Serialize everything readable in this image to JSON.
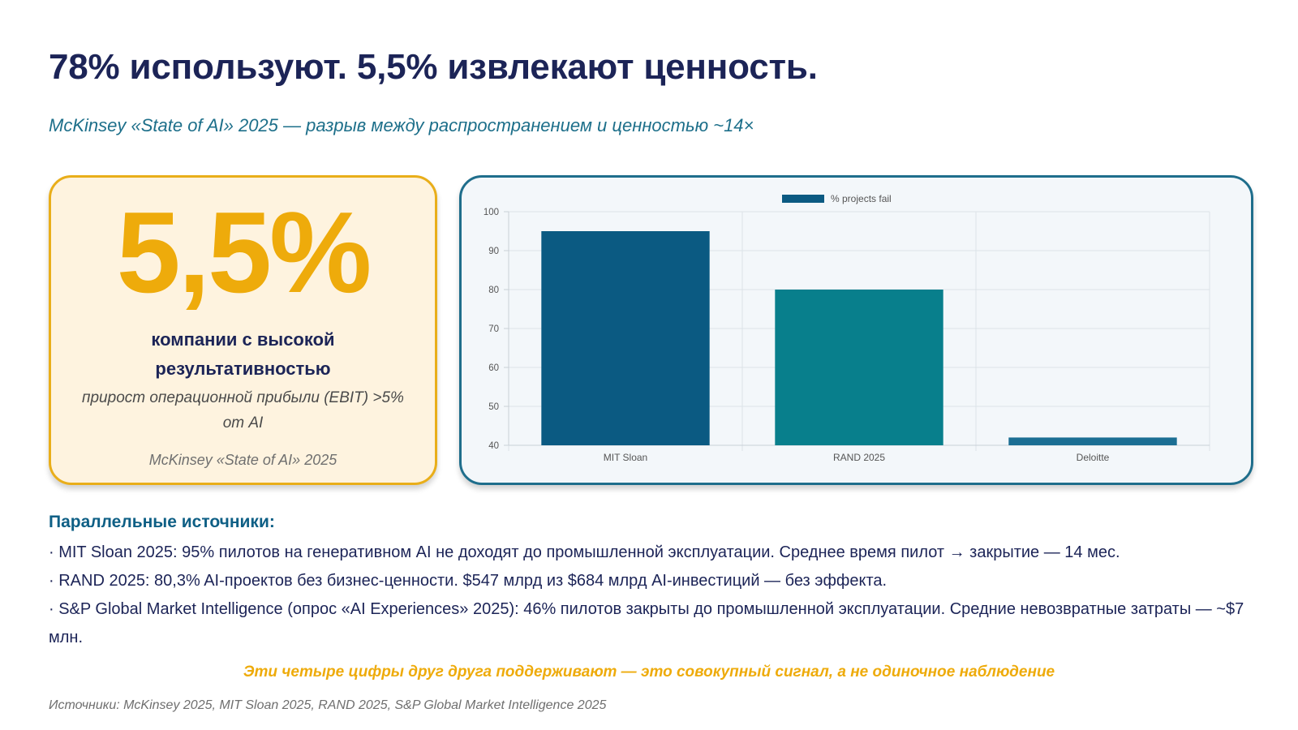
{
  "title": "78% используют. 5,5% извлекают ценность.",
  "subtitle": "McKinsey «State of AI» 2025 — разрыв между распространением и ценностью ~14×",
  "stat_card": {
    "value": "5,5%",
    "label": "компании с высокой результативностью",
    "description": "прирост операционной прибыли (EBIT) >5% от AI",
    "source": "McKinsey «State of AI» 2025"
  },
  "chart_data": {
    "type": "bar",
    "categories": [
      "MIT Sloan",
      "RAND 2025",
      "Deloitte"
    ],
    "series": [
      {
        "name": "% projects fail",
        "values": [
          95,
          80,
          42
        ]
      }
    ],
    "bar_colors": [
      "#0b5a82",
      "#087f8c",
      "#1b6e93"
    ],
    "legend_color": "#0b5a82",
    "ylim": [
      40,
      100
    ],
    "yticks": [
      40,
      50,
      60,
      70,
      80,
      90,
      100
    ],
    "grid": true,
    "legend_position": "top-center",
    "xlabel": "",
    "ylabel": ""
  },
  "sources": {
    "heading": "Параллельные источники:",
    "items": [
      "· MIT Sloan 2025: 95% пилотов на генеративном AI не доходят до промышленной эксплуатации. Среднее время пилот → закрытие — 14 мес.",
      "· RAND 2025: 80,3% AI-проектов без бизнес-ценности. $547 млрд из $684 млрд AI-инвестиций — без эффекта.",
      "· S&P Global Market Intelligence (опрос «AI Experiences» 2025): 46% пилотов закрыты до промышленной эксплуатации. Средние невозвратные затраты — ~$7 млн."
    ]
  },
  "callout": "Эти четыре цифры друг друга поддерживают — это совокупный сигнал, а не одиночное наблюдение",
  "footnote": "Источники: McKinsey 2025, MIT Sloan 2025, RAND 2025, S&P Global Market Intelligence 2025",
  "colors": {
    "title": "#1c2457",
    "accent_gold": "#eeab0b",
    "accent_teal": "#1d6f8a",
    "card_bg": "#fef3df"
  }
}
